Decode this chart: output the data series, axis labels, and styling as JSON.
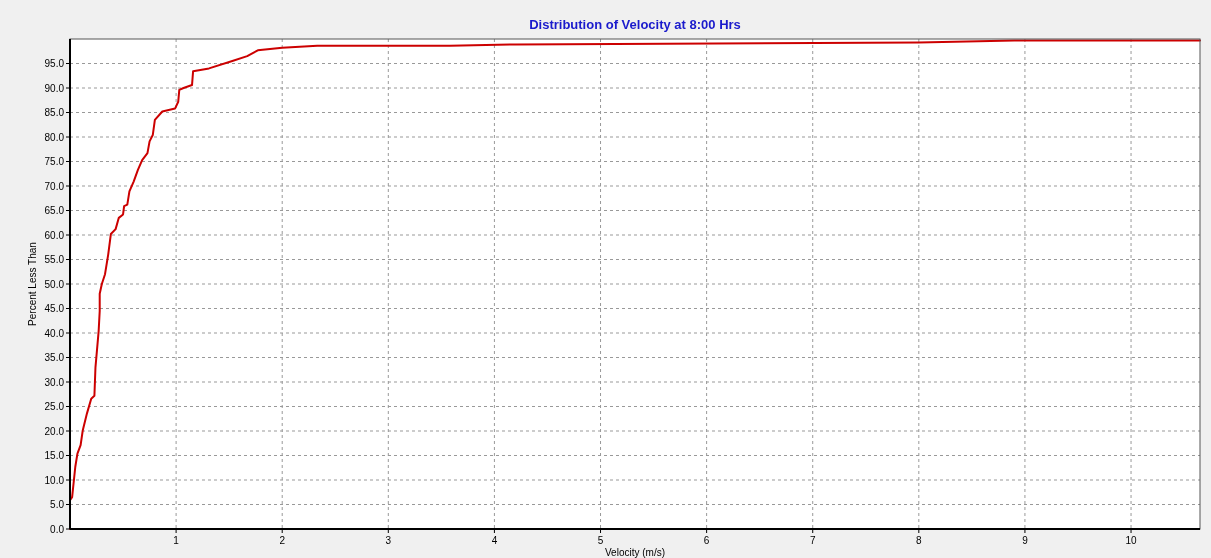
{
  "chart_data": {
    "type": "line",
    "title": "Distribution of Velocity at 8:00 Hrs",
    "xlabel": "Velocity (m/s)",
    "ylabel": "Percent Less Than",
    "xlim": [
      0,
      10.65
    ],
    "ylim": [
      0,
      100
    ],
    "xticks": [
      1,
      2,
      3,
      4,
      5,
      6,
      7,
      8,
      9,
      10
    ],
    "yticks": [
      {
        "value": 0,
        "label": "0.0"
      },
      {
        "value": 5,
        "label": "5.0"
      },
      {
        "value": 10,
        "label": "10.0"
      },
      {
        "value": 15,
        "label": "15.0"
      },
      {
        "value": 20,
        "label": "20.0"
      },
      {
        "value": 25,
        "label": "25.0"
      },
      {
        "value": 30,
        "label": "30.0"
      },
      {
        "value": 35,
        "label": "35.0"
      },
      {
        "value": 40,
        "label": "40.0"
      },
      {
        "value": 45,
        "label": "45.0"
      },
      {
        "value": 50,
        "label": "50.0"
      },
      {
        "value": 55,
        "label": "55.0"
      },
      {
        "value": 60,
        "label": "60.0"
      },
      {
        "value": 65,
        "label": "65.0"
      },
      {
        "value": 70,
        "label": "70.0"
      },
      {
        "value": 75,
        "label": "75.0"
      },
      {
        "value": 80,
        "label": "80.0"
      },
      {
        "value": 85,
        "label": "85.0"
      },
      {
        "value": 90,
        "label": "90.0"
      },
      {
        "value": 95,
        "label": "95.0"
      }
    ],
    "grid": true,
    "line_style": "solid",
    "marker": "none",
    "series": [
      {
        "color": "#cc0000",
        "x": [
          0,
          0,
          0.02,
          0.05,
          0.07,
          0.1,
          0.12,
          0.16,
          0.2,
          0.23,
          0.24,
          0.27,
          0.28,
          0.28,
          0.3,
          0.33,
          0.36,
          0.385,
          0.43,
          0.46,
          0.5,
          0.51,
          0.54,
          0.56,
          0.6,
          0.64,
          0.68,
          0.73,
          0.75,
          0.78,
          0.8,
          0.87,
          0.93,
          0.99,
          1.02,
          1.03,
          1.07,
          1.15,
          1.16,
          1.31,
          1.53,
          1.67,
          1.77,
          2.0,
          2.33,
          3.58,
          4.2,
          8.0,
          8.9,
          10.65
        ],
        "values": [
          0,
          5.9,
          6.5,
          12.7,
          15.4,
          17.1,
          20.1,
          23.6,
          26.6,
          27.2,
          33,
          40.4,
          44.5,
          48,
          50,
          52,
          56,
          60.2,
          61.2,
          63.5,
          64.2,
          65.9,
          66.2,
          68.9,
          70.9,
          73.3,
          75.3,
          76.7,
          79.1,
          80.4,
          83.5,
          85.2,
          85.5,
          85.8,
          87.2,
          89.6,
          90,
          90.6,
          93.4,
          94,
          95.5,
          96.5,
          97.7,
          98.2,
          98.6,
          98.6,
          98.9,
          99.3,
          99.7,
          99.7
        ]
      }
    ]
  }
}
